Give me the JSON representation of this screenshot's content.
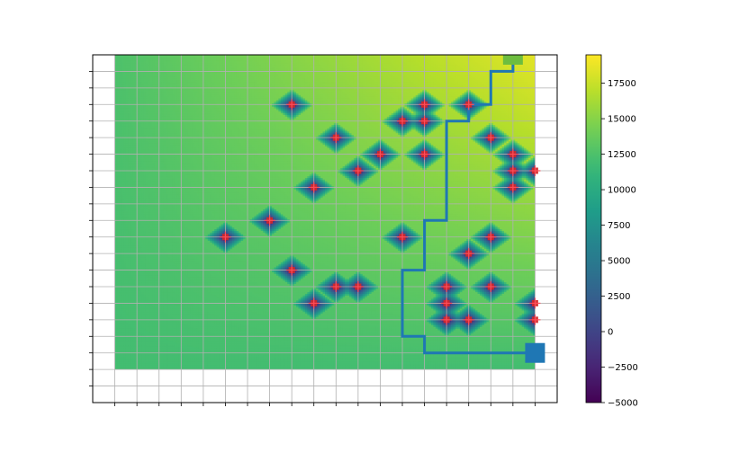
{
  "chart_data": {
    "type": "heatmap",
    "title": "",
    "xlabel": "",
    "ylabel": "",
    "grid": true,
    "grid_color": "#b0b0b0",
    "colormap": "viridis",
    "xlim": [
      -1,
      20
    ],
    "ylim": [
      -1,
      20
    ],
    "field_extent": {
      "x": [
        0,
        19
      ],
      "y": [
        1,
        20
      ]
    },
    "base_field": {
      "nw": 12500,
      "ne": 18500,
      "sw": 12000,
      "se": 12000
    },
    "path_color": "#1f77b4",
    "start": {
      "x": 19,
      "y": 2,
      "color": "#1f77b4"
    },
    "goal": {
      "x": 18,
      "y": 20,
      "color": "#6dbd3f"
    },
    "path": [
      [
        19,
        2
      ],
      [
        14,
        2
      ],
      [
        14,
        3
      ],
      [
        13,
        3
      ],
      [
        13,
        7
      ],
      [
        14,
        7
      ],
      [
        14,
        10
      ],
      [
        15,
        10
      ],
      [
        15,
        16
      ],
      [
        16,
        16
      ],
      [
        16,
        17
      ],
      [
        17,
        17
      ],
      [
        17,
        18
      ],
      [
        17,
        19
      ],
      [
        18,
        19
      ],
      [
        18,
        20
      ]
    ],
    "obstacles": [
      [
        8,
        17
      ],
      [
        14,
        17
      ],
      [
        16,
        17
      ],
      [
        13,
        16
      ],
      [
        14,
        16
      ],
      [
        17,
        15
      ],
      [
        10,
        15
      ],
      [
        18,
        14
      ],
      [
        12,
        14
      ],
      [
        14,
        14
      ],
      [
        11,
        13
      ],
      [
        18,
        13
      ],
      [
        9,
        12
      ],
      [
        18,
        12
      ],
      [
        7,
        10
      ],
      [
        13,
        9
      ],
      [
        17,
        9
      ],
      [
        5,
        9
      ],
      [
        16,
        8
      ],
      [
        8,
        7
      ],
      [
        11,
        6
      ],
      [
        10,
        6
      ],
      [
        15,
        6
      ],
      [
        17,
        6
      ],
      [
        9,
        5
      ],
      [
        15,
        5
      ],
      [
        15,
        4
      ],
      [
        16,
        4
      ],
      [
        19,
        5
      ],
      [
        19,
        4
      ],
      [
        19,
        13
      ]
    ],
    "obstacle_value": -5000,
    "colorbar": {
      "min": -5000,
      "max": 19500,
      "ticks": [
        17500,
        15000,
        12500,
        10000,
        7500,
        5000,
        2500,
        0,
        -2500,
        -5000
      ],
      "tick_labels": [
        "17500",
        "15000",
        "12500",
        "10000",
        "7500",
        "5000",
        "2500",
        "0",
        "−2500",
        "−5000"
      ]
    }
  }
}
